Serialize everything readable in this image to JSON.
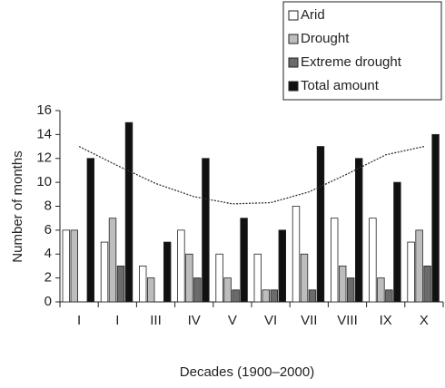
{
  "chart_data": {
    "type": "bar",
    "x_label": "Decades (1900–2000)",
    "y_label": "Number of months",
    "categories": [
      "I",
      "I",
      "III",
      "IV",
      "V",
      "VI",
      "VII",
      "VIII",
      "IX",
      "X"
    ],
    "series": [
      {
        "name": "Arid",
        "color": "#ffffff",
        "values": [
          6,
          5,
          3,
          6,
          4,
          4,
          8,
          7,
          7,
          5
        ]
      },
      {
        "name": "Drought",
        "color": "#bdbdbd",
        "values": [
          6,
          7,
          2,
          4,
          2,
          1,
          4,
          3,
          2,
          6
        ]
      },
      {
        "name": "Extreme drought",
        "color": "#6b6b6b",
        "values": [
          0,
          3,
          0,
          2,
          1,
          1,
          1,
          2,
          1,
          3
        ]
      },
      {
        "name": "Total amount",
        "color": "#111111",
        "values": [
          12,
          15,
          5,
          12,
          7,
          6,
          13,
          12,
          10,
          14
        ]
      }
    ],
    "trend": {
      "color": "#333333",
      "values": [
        13,
        11.4,
        9.9,
        8.8,
        8.2,
        8.3,
        9.2,
        10.7,
        12.3,
        13
      ]
    },
    "ylim": [
      0,
      16
    ],
    "yticks": [
      0,
      2,
      4,
      6,
      8,
      10,
      12,
      14,
      16
    ],
    "legend": "top-right"
  }
}
